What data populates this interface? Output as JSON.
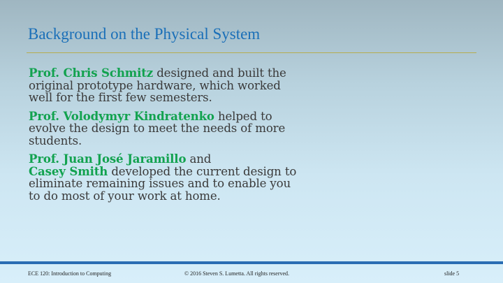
{
  "slide": {
    "title": "Background on the Physical System",
    "paragraphs": [
      {
        "lines": [
          {
            "name": "Prof. Chris Schmitz",
            "text": " designed and built the"
          },
          {
            "name": "",
            "text": "original prototype hardware, which worked"
          },
          {
            "name": "",
            "text": "well for the first few semesters."
          }
        ]
      },
      {
        "lines": [
          {
            "name": "Prof. Volodymyr Kindratenko",
            "text": " helped to"
          },
          {
            "name": "",
            "text": "evolve the design to meet the needs of more"
          },
          {
            "name": "",
            "text": "students."
          }
        ]
      },
      {
        "lines": [
          {
            "name": "Prof. Juan José Jaramillo",
            "text": " and"
          },
          {
            "name": "Casey Smith",
            "text": " developed the current design to"
          },
          {
            "name": "",
            "text": "eliminate remaining issues and to enable you"
          },
          {
            "name": "",
            "text": "to do most of your work at home."
          }
        ]
      }
    ]
  },
  "footer": {
    "course": "ECE 120: Introduction to Computing",
    "copyright": "© 2016 Steven S. Lumetta.  All rights reserved.",
    "slide_number": "slide 5"
  },
  "colors": {
    "title": "#1a6fb8",
    "name_highlight": "#12a24f",
    "body_text": "#3a3a3a",
    "title_rule": "#b7ad4e",
    "footer_bar": "#2a6db3"
  }
}
